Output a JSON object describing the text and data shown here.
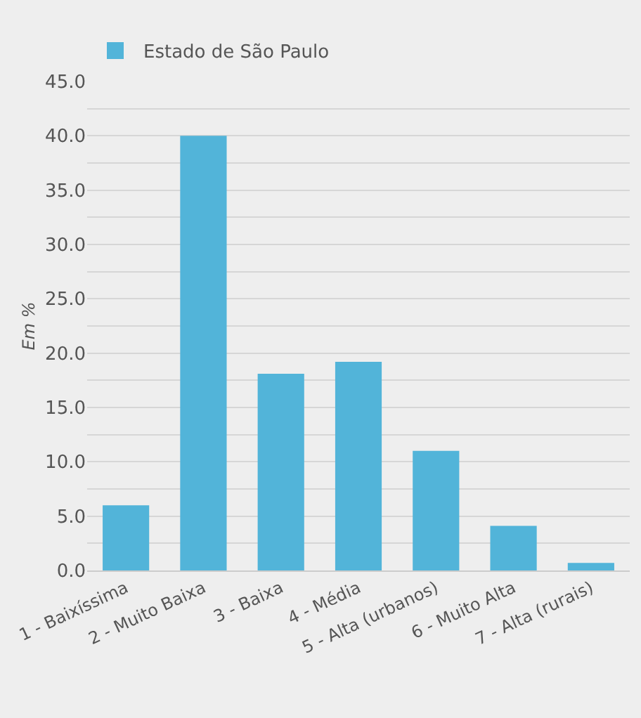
{
  "chart_data": {
    "type": "bar",
    "ylabel": "Em %",
    "categories": [
      "1 - Baixíssima",
      "2 - Muito Baixa",
      "3 - Baixa",
      "4 - Média",
      "5 - Alta (urbanos)",
      "6 - Muito Alta",
      "7 - Alta (rurais)"
    ],
    "series": [
      {
        "name": "Estado de São Paulo",
        "color": "#52b4d9",
        "values": [
          6.0,
          40.0,
          18.1,
          19.2,
          11.0,
          4.1,
          0.7
        ]
      }
    ],
    "ylim": [
      0,
      45
    ],
    "yticks": [
      {
        "value": 0,
        "label": "0.0"
      },
      {
        "value": 2.5,
        "label": null
      },
      {
        "value": 5,
        "label": "5.0"
      },
      {
        "value": 7.5,
        "label": null
      },
      {
        "value": 10,
        "label": "10.0"
      },
      {
        "value": 12.5,
        "label": null
      },
      {
        "value": 15,
        "label": "15.0"
      },
      {
        "value": 17.5,
        "label": null
      },
      {
        "value": 20,
        "label": "20.0"
      },
      {
        "value": 22.5,
        "label": null
      },
      {
        "value": 25,
        "label": "25.0"
      },
      {
        "value": 27.5,
        "label": null
      },
      {
        "value": 30,
        "label": "30.0"
      },
      {
        "value": 32.5,
        "label": null
      },
      {
        "value": 35,
        "label": "35.0"
      },
      {
        "value": 37.5,
        "label": null
      },
      {
        "value": 40,
        "label": "40.0"
      },
      {
        "value": 42.5,
        "label": null
      },
      {
        "value": 45,
        "label": "45.0"
      }
    ],
    "grid": "y",
    "legend": "top left"
  }
}
